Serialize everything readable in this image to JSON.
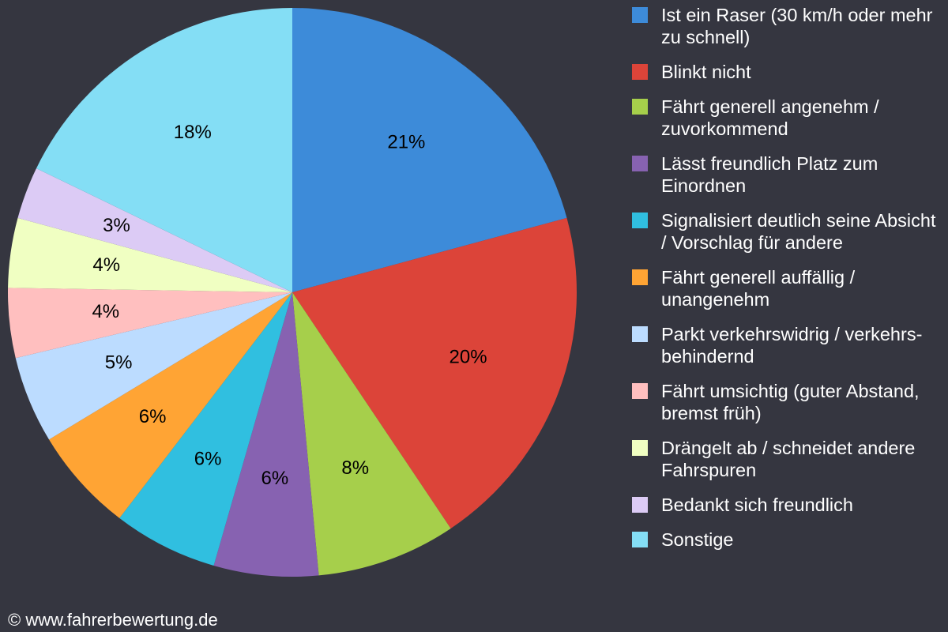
{
  "chart_data": {
    "type": "pie",
    "categories": [
      "Ist ein Raser (30 km/h oder mehr zu schnell)",
      "Blinkt nicht",
      "Fährt generell angenehm / zuvorkommend",
      "Lässt freundlich Platz zum Einordnen",
      "Signalisiert deutlich seine Absicht / Vorschlag für andere",
      "Fährt generell auffällig / unangenehm",
      "Parkt verkehrswidrig / verkehrs-behindernd",
      "Fährt umsichtig (guter Abstand, bremst früh)",
      "Drängelt ab / schneidet andere Fahrspuren",
      "Bedankt sich freundlich",
      "Sonstige"
    ],
    "values": [
      21,
      20,
      8,
      6,
      6,
      6,
      5,
      4,
      4,
      3,
      18
    ],
    "value_labels": [
      "21%",
      "20%",
      "8%",
      "6%",
      "6%",
      "6%",
      "5%",
      "4%",
      "4%",
      "3%",
      "18%"
    ],
    "colors": [
      "#3d8bd9",
      "#dc4439",
      "#a6cf4b",
      "#8762b1",
      "#30bfe0",
      "#ffa434",
      "#bcdcff",
      "#ffbfbf",
      "#f0ffc2",
      "#dccbf5",
      "#84def5"
    ],
    "legend": "right",
    "source": "© www.fahrerbewertung.de"
  }
}
